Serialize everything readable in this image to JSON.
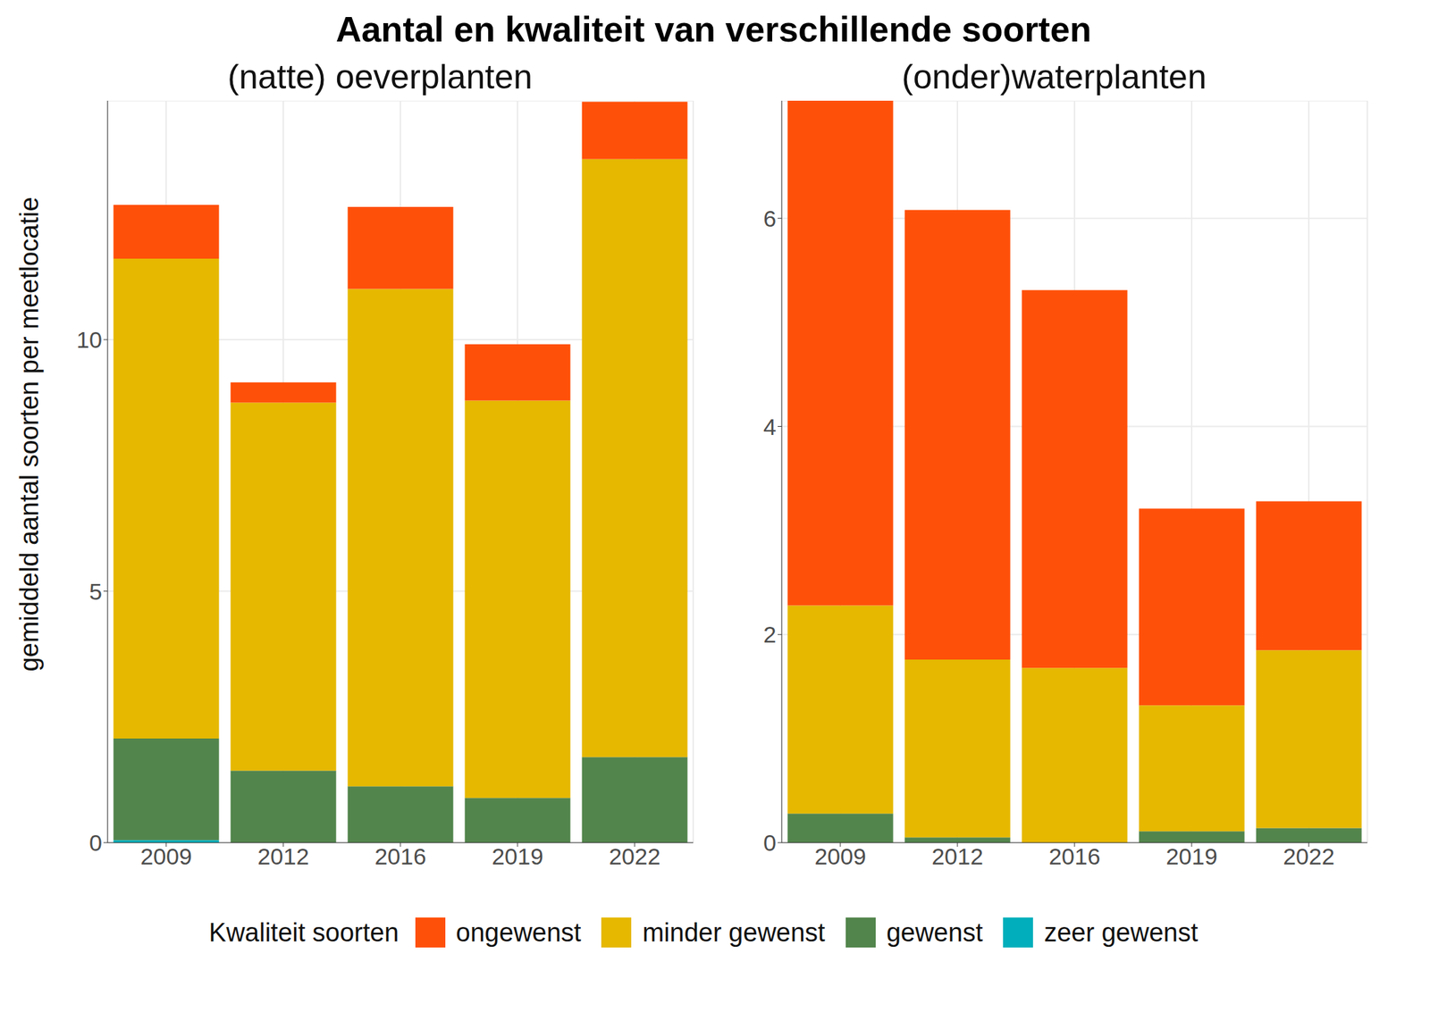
{
  "title": "Aantal en kwaliteit van verschillende soorten",
  "y_label": "gemiddeld aantal soorten per meetlocatie",
  "legend_title": "Kwaliteit soorten",
  "chart_data": [
    {
      "type": "bar",
      "subtitle": "(natte) oeverplanten",
      "categories": [
        "2009",
        "2012",
        "2016",
        "2019",
        "2022"
      ],
      "stacked": true,
      "grid": true,
      "legend": "bottom",
      "ylim": [
        0,
        14.75
      ],
      "yticks": [
        0,
        5,
        10
      ],
      "series": [
        {
          "name": "ongewenst",
          "color": "#FF5009",
          "values": [
            1.07,
            0.4,
            1.63,
            1.12,
            1.14
          ]
        },
        {
          "name": "minder gewenst",
          "color": "#E6B800",
          "values": [
            9.54,
            7.32,
            9.89,
            7.9,
            11.89
          ]
        },
        {
          "name": "gewenst",
          "color": "#52854C",
          "values": [
            2.02,
            1.43,
            1.12,
            0.89,
            1.7
          ]
        },
        {
          "name": "zeer gewenst",
          "color": "#00AFBB",
          "values": [
            0.05,
            0,
            0,
            0,
            0
          ]
        }
      ]
    },
    {
      "type": "bar",
      "subtitle": "(onder)waterplanten",
      "categories": [
        "2009",
        "2012",
        "2016",
        "2019",
        "2022"
      ],
      "stacked": true,
      "grid": true,
      "legend": "bottom",
      "ylim": [
        0,
        7.13
      ],
      "yticks": [
        0,
        2,
        4,
        6
      ],
      "series": [
        {
          "name": "ongewenst",
          "color": "#FF5009",
          "values": [
            4.85,
            4.32,
            3.63,
            1.89,
            1.43
          ]
        },
        {
          "name": "minder gewenst",
          "color": "#E6B800",
          "values": [
            2.0,
            1.71,
            1.68,
            1.21,
            1.71
          ]
        },
        {
          "name": "gewenst",
          "color": "#52854C",
          "values": [
            0.28,
            0.05,
            0,
            0.11,
            0.14
          ]
        },
        {
          "name": "zeer gewenst",
          "color": "#00AFBB",
          "values": [
            0,
            0,
            0,
            0,
            0
          ]
        }
      ]
    }
  ]
}
